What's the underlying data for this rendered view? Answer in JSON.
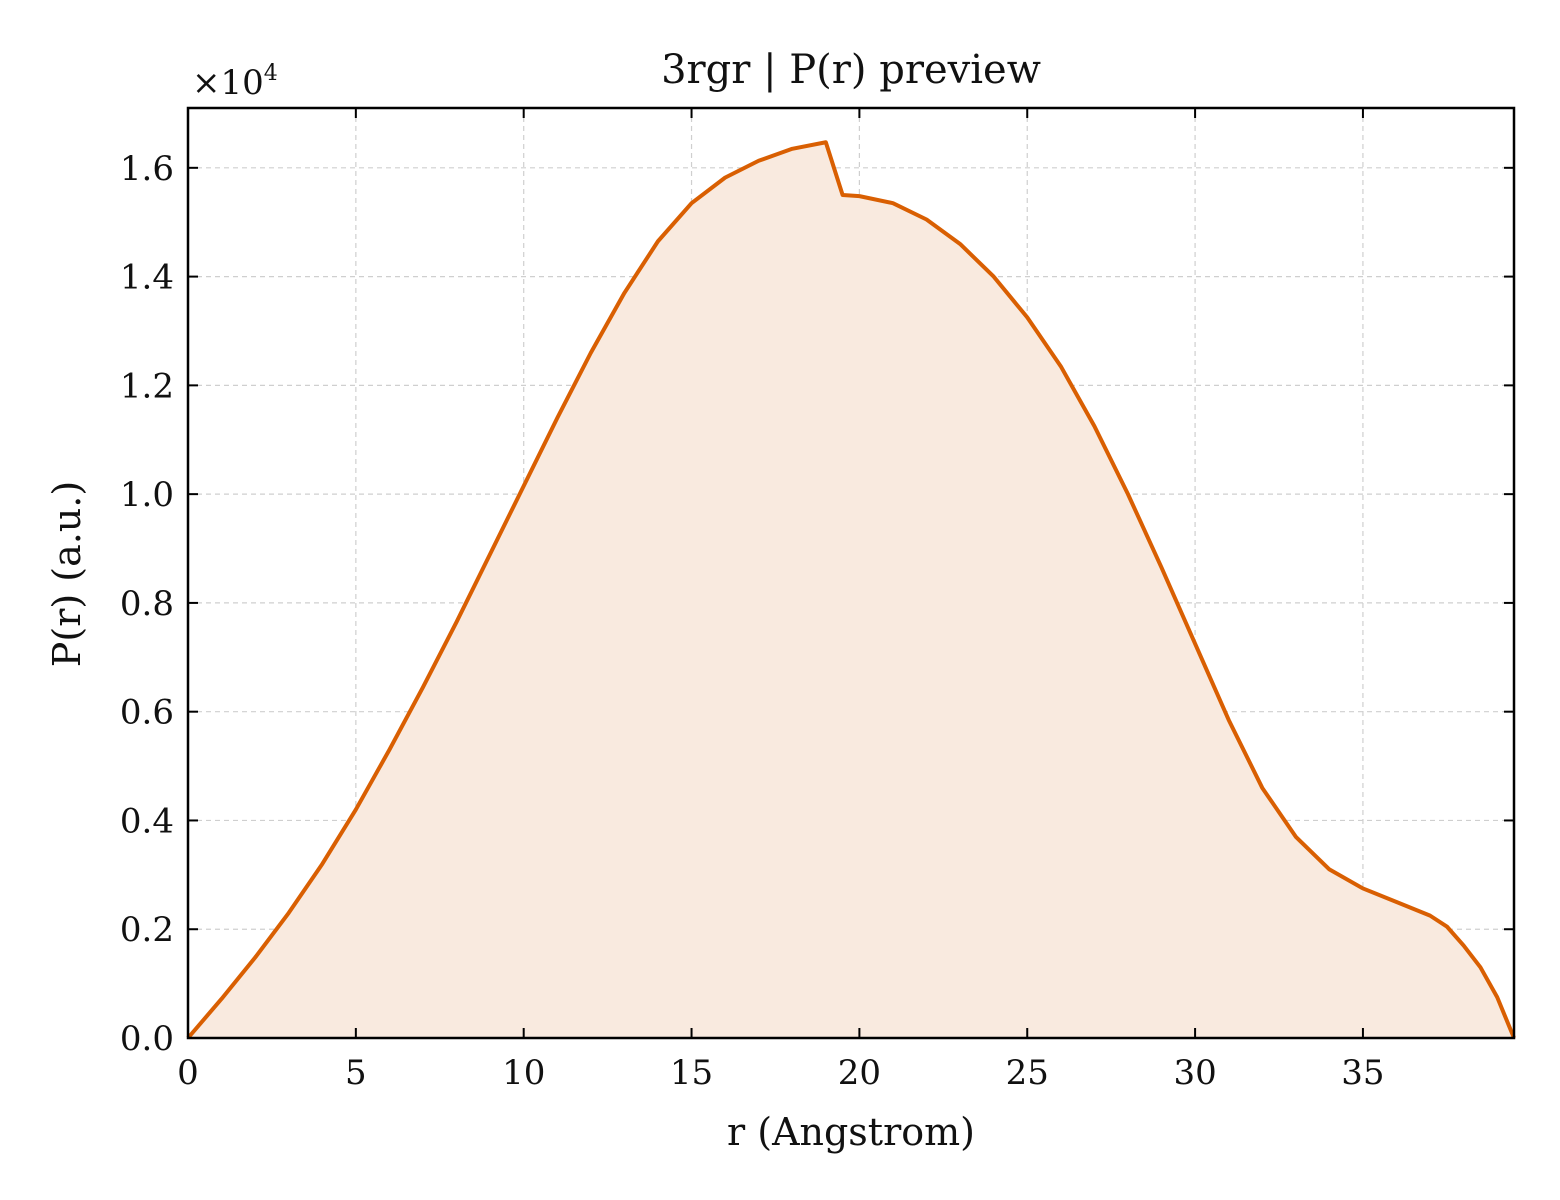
{
  "chart_data": {
    "type": "area",
    "title": "3rgr | P(r) preview",
    "xlabel": "r (Angstrom)",
    "ylabel": "P(r) (a.u.)",
    "y_multiplier_label": "×10",
    "y_multiplier_exponent": "4",
    "xlim": [
      0,
      39.5
    ],
    "ylim": [
      0,
      1.71
    ],
    "xticks": [
      0,
      5,
      10,
      15,
      20,
      25,
      30,
      35
    ],
    "xtick_labels": [
      "0",
      "5",
      "10",
      "15",
      "20",
      "25",
      "30",
      "35"
    ],
    "yticks": [
      0,
      0.2,
      0.4,
      0.6,
      0.8,
      1.0,
      1.2,
      1.4,
      1.6
    ],
    "ytick_labels": [
      "0.0",
      "0.2",
      "0.4",
      "0.6",
      "0.8",
      "1.0",
      "1.2",
      "1.4",
      "1.6"
    ],
    "grid": true,
    "series": [
      {
        "color": "#d95f02",
        "fill_color": "#f9eadf",
        "x": [
          0,
          1,
          2,
          3,
          4,
          5,
          6,
          7,
          8,
          9,
          10,
          11,
          12,
          13,
          14,
          15,
          16,
          17,
          18,
          19,
          19.5,
          20,
          21,
          22,
          23,
          24,
          25,
          26,
          27,
          28,
          29,
          30,
          31,
          32,
          33,
          34,
          35,
          36,
          37,
          37.5,
          38,
          38.5,
          39,
          39.5
        ],
        "y": [
          0,
          0.072,
          0.148,
          0.23,
          0.32,
          0.42,
          0.53,
          0.645,
          0.765,
          0.89,
          1.015,
          1.14,
          1.26,
          1.37,
          1.465,
          1.535,
          1.582,
          1.613,
          1.635,
          1.647,
          1.55,
          1.548,
          1.535,
          1.505,
          1.46,
          1.4,
          1.325,
          1.235,
          1.125,
          1.0,
          0.865,
          0.725,
          0.585,
          0.46,
          0.37,
          0.31,
          0.275,
          0.25,
          0.225,
          0.205,
          0.17,
          0.13,
          0.075,
          0.0
        ]
      }
    ]
  }
}
